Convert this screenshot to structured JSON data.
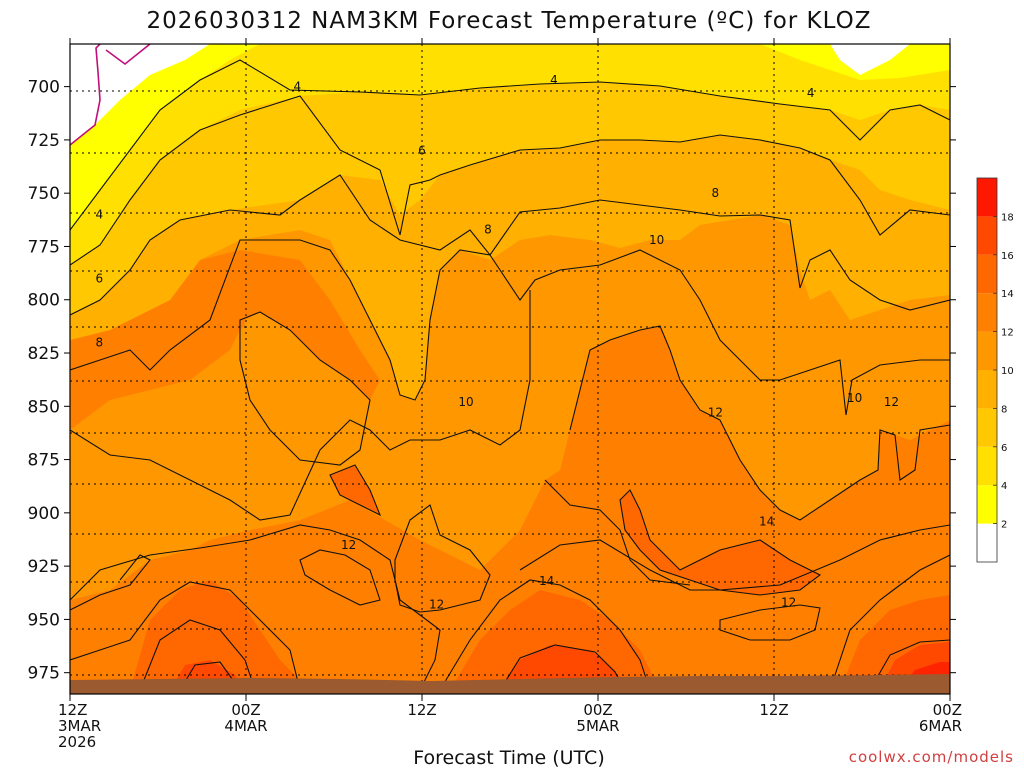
{
  "chart_data": {
    "type": "heatmap",
    "title": "2026030312 NAM3KM Forecast Temperature (ºC) for KLOZ",
    "xlabel": "Forecast Time (UTC)",
    "ylabel": "",
    "x_ticks": [
      {
        "hour": 0,
        "label1": "12Z",
        "label2": "3MAR",
        "label3": "2026"
      },
      {
        "hour": 12,
        "label1": "00Z",
        "label2": "4MAR",
        "label3": ""
      },
      {
        "hour": 24,
        "label1": "12Z",
        "label2": "",
        "label3": ""
      },
      {
        "hour": 36,
        "label1": "00Z",
        "label2": "5MAR",
        "label3": ""
      },
      {
        "hour": 48,
        "label1": "12Z",
        "label2": "",
        "label3": ""
      },
      {
        "hour": 60,
        "label1": "00Z",
        "label2": "6MAR",
        "label3": ""
      }
    ],
    "xlim": [
      0,
      60
    ],
    "y_ticks": [
      700,
      725,
      750,
      775,
      800,
      825,
      850,
      875,
      900,
      925,
      950,
      975
    ],
    "ylim": [
      680,
      985
    ],
    "y_scale": "linear (pressure, hPa, increasing downward)",
    "grid": true,
    "colorbar": {
      "ticks": [
        2,
        4,
        6,
        8,
        10,
        12,
        14,
        16,
        18
      ],
      "colors": [
        "#ffffff",
        "#ffff00",
        "#ffe000",
        "#ffc800",
        "#ffb000",
        "#ff9800",
        "#ff8000",
        "#ff6800",
        "#ff4800",
        "#ff1800"
      ],
      "placement": "right"
    },
    "contour_labels": [
      {
        "value": "4",
        "hour": 15.5,
        "p": 700
      },
      {
        "value": "4",
        "hour": 33.0,
        "p": 697
      },
      {
        "value": "4",
        "hour": 50.5,
        "p": 703
      },
      {
        "value": "6",
        "hour": 24.0,
        "p": 730
      },
      {
        "value": "4",
        "hour": 2.0,
        "p": 760
      },
      {
        "value": "8",
        "hour": 28.5,
        "p": 767
      },
      {
        "value": "8",
        "hour": 44.0,
        "p": 750
      },
      {
        "value": "10",
        "hour": 40.0,
        "p": 772
      },
      {
        "value": "6",
        "hour": 2.0,
        "p": 790
      },
      {
        "value": "8",
        "hour": 2.0,
        "p": 820
      },
      {
        "value": "10",
        "hour": 27.0,
        "p": 848
      },
      {
        "value": "12",
        "hour": 44.0,
        "p": 853
      },
      {
        "value": "10",
        "hour": 53.5,
        "p": 846
      },
      {
        "value": "12",
        "hour": 56.0,
        "p": 848
      },
      {
        "value": "12",
        "hour": 19.0,
        "p": 915
      },
      {
        "value": "12",
        "hour": 25.0,
        "p": 943
      },
      {
        "value": "14",
        "hour": 32.5,
        "p": 932
      },
      {
        "value": "14",
        "hour": 47.5,
        "p": 904
      },
      {
        "value": "12",
        "hour": 49.0,
        "p": 942
      }
    ],
    "terrain_color": "#9c5a30",
    "terrain_pressure": 974
  },
  "credit": "coolwx.com/models",
  "colors": {
    "axis": "#000000",
    "grid": "#000000",
    "freezing_line": "#c0107a"
  }
}
